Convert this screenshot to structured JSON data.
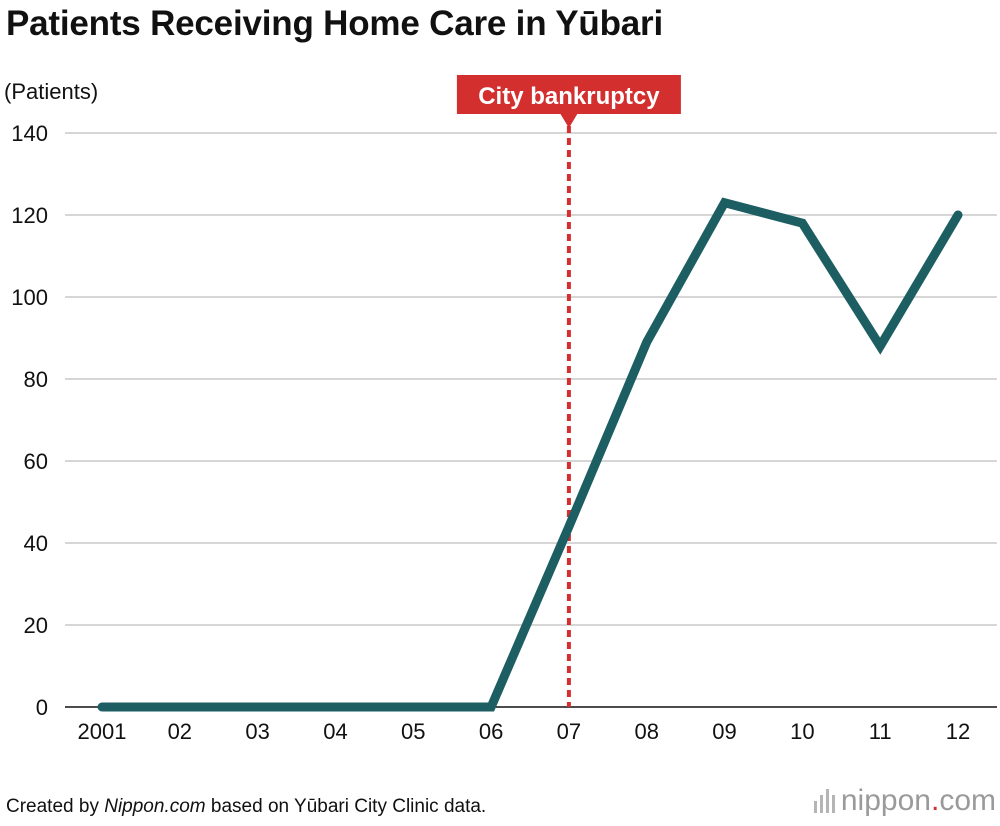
{
  "title": "Patients Receiving Home Care in Yūbari",
  "footer": {
    "prefix": "Created by ",
    "source_name": "Nippon.com",
    "suffix": " based on Yūbari City Clinic data."
  },
  "logo": {
    "text_before": "nippon",
    "dot": ".",
    "text_after": "com"
  },
  "colors": {
    "line": "#1d5e63",
    "annotation": "#d32f2f",
    "grid": "#c8c8c8",
    "text": "#111111"
  },
  "chart_data": {
    "type": "line",
    "ylabel": "(Patients)",
    "xlabel": "",
    "categories": [
      "2001",
      "02",
      "03",
      "04",
      "05",
      "06",
      "07",
      "08",
      "09",
      "10",
      "11",
      "12"
    ],
    "series": [
      {
        "values": [
          0,
          0,
          0,
          0,
          0,
          0,
          44,
          89,
          123,
          118,
          88,
          120
        ]
      }
    ],
    "ylim": [
      0,
      140
    ],
    "yticks": [
      0,
      20,
      40,
      60,
      80,
      100,
      120,
      140
    ],
    "grid": true,
    "annotation": {
      "label": "City bankruptcy",
      "x": "07"
    }
  }
}
